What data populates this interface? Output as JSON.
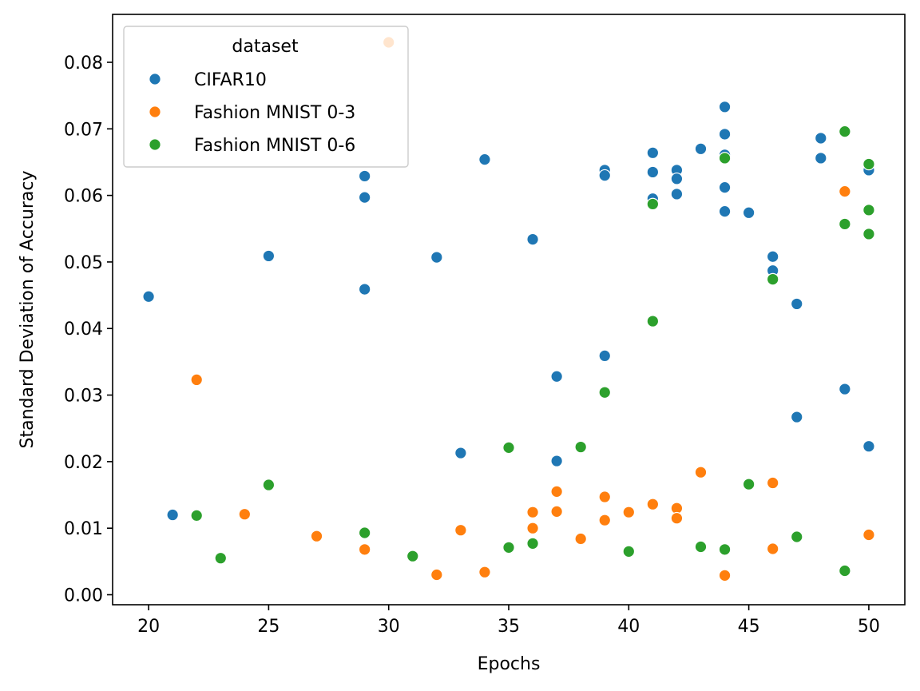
{
  "chart_data": {
    "type": "scatter",
    "title": "",
    "xlabel": "Epochs",
    "ylabel": "Standard Deviation of Accuracy",
    "xlim": [
      18.5,
      51.5
    ],
    "ylim": [
      -0.0015,
      0.0872
    ],
    "xticks": [
      20,
      25,
      30,
      35,
      40,
      45,
      50
    ],
    "yticks": [
      0.0,
      0.01,
      0.02,
      0.03,
      0.04,
      0.05,
      0.06,
      0.07,
      0.08
    ],
    "xtick_labels": [
      "20",
      "25",
      "30",
      "35",
      "40",
      "45",
      "50"
    ],
    "ytick_labels": [
      "0.00",
      "0.01",
      "0.02",
      "0.03",
      "0.04",
      "0.05",
      "0.06",
      "0.07",
      "0.08"
    ],
    "grid": false,
    "legend": {
      "title": "dataset",
      "placement": "top-left"
    },
    "series": [
      {
        "name": "CIFAR10",
        "color": "#1f77b4",
        "points": [
          [
            20,
            0.0448
          ],
          [
            21,
            0.012
          ],
          [
            25,
            0.0509
          ],
          [
            29,
            0.0629
          ],
          [
            29,
            0.0597
          ],
          [
            29,
            0.0459
          ],
          [
            32,
            0.0507
          ],
          [
            33,
            0.0213
          ],
          [
            34,
            0.0654
          ],
          [
            36,
            0.0534
          ],
          [
            37,
            0.0328
          ],
          [
            37,
            0.0201
          ],
          [
            39,
            0.0638
          ],
          [
            39,
            0.063
          ],
          [
            39,
            0.0359
          ],
          [
            41,
            0.0664
          ],
          [
            41,
            0.0635
          ],
          [
            41,
            0.0595
          ],
          [
            42,
            0.0638
          ],
          [
            42,
            0.0625
          ],
          [
            42,
            0.0602
          ],
          [
            43,
            0.067
          ],
          [
            44,
            0.0733
          ],
          [
            44,
            0.0692
          ],
          [
            44,
            0.0661
          ],
          [
            44,
            0.0612
          ],
          [
            44,
            0.0576
          ],
          [
            45,
            0.0574
          ],
          [
            46,
            0.0508
          ],
          [
            46,
            0.0487
          ],
          [
            47,
            0.0437
          ],
          [
            47,
            0.0267
          ],
          [
            48,
            0.0686
          ],
          [
            48,
            0.0656
          ],
          [
            49,
            0.0309
          ],
          [
            50,
            0.0638
          ],
          [
            50,
            0.0223
          ]
        ]
      },
      {
        "name": "Fashion MNIST 0-3",
        "color": "#ff7f0e",
        "points": [
          [
            22,
            0.0323
          ],
          [
            24,
            0.0121
          ],
          [
            27,
            0.0088
          ],
          [
            29,
            0.0068
          ],
          [
            30,
            0.083
          ],
          [
            32,
            0.003
          ],
          [
            33,
            0.0097
          ],
          [
            34,
            0.0034
          ],
          [
            36,
            0.0124
          ],
          [
            36,
            0.01
          ],
          [
            37,
            0.0155
          ],
          [
            37,
            0.0125
          ],
          [
            38,
            0.0084
          ],
          [
            39,
            0.0147
          ],
          [
            39,
            0.0112
          ],
          [
            40,
            0.0124
          ],
          [
            41,
            0.0136
          ],
          [
            42,
            0.013
          ],
          [
            42,
            0.0115
          ],
          [
            43,
            0.0184
          ],
          [
            44,
            0.0029
          ],
          [
            46,
            0.0168
          ],
          [
            46,
            0.0069
          ],
          [
            49,
            0.0606
          ],
          [
            50,
            0.009
          ]
        ]
      },
      {
        "name": "Fashion MNIST 0-6",
        "color": "#2ca02c",
        "points": [
          [
            22,
            0.0119
          ],
          [
            23,
            0.0055
          ],
          [
            25,
            0.0165
          ],
          [
            29,
            0.0093
          ],
          [
            31,
            0.0058
          ],
          [
            35,
            0.0221
          ],
          [
            35,
            0.0071
          ],
          [
            36,
            0.0077
          ],
          [
            38,
            0.0222
          ],
          [
            39,
            0.0304
          ],
          [
            40,
            0.0065
          ],
          [
            41,
            0.0587
          ],
          [
            41,
            0.0411
          ],
          [
            43,
            0.0072
          ],
          [
            44,
            0.0656
          ],
          [
            44,
            0.0068
          ],
          [
            45,
            0.0166
          ],
          [
            46,
            0.0474
          ],
          [
            47,
            0.0087
          ],
          [
            49,
            0.0696
          ],
          [
            49,
            0.0557
          ],
          [
            49,
            0.0036
          ],
          [
            50,
            0.0647
          ],
          [
            50,
            0.0578
          ],
          [
            50,
            0.0542
          ]
        ]
      }
    ]
  }
}
